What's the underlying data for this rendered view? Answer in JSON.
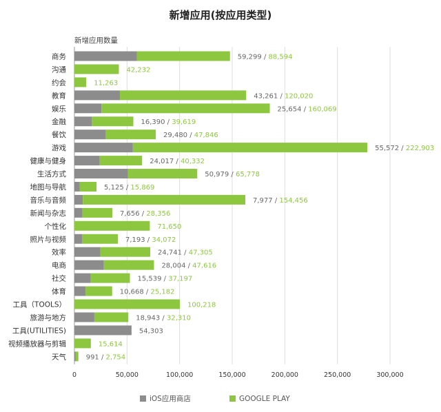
{
  "chart_data": {
    "type": "bar",
    "orientation": "horizontal",
    "stacked": true,
    "title": "新增应用(按应用类型)",
    "subtitle": "新增应用数量",
    "xlabel": "",
    "ylabel": "新增应用数量",
    "xlim": [
      0,
      300000
    ],
    "x_ticks": [
      0,
      50000,
      100000,
      150000,
      200000,
      250000,
      300000
    ],
    "x_tick_labels": [
      "0",
      "50,000",
      "100,000",
      "150,000",
      "200,000",
      "250,000",
      "300,000"
    ],
    "grid": true,
    "legend_position": "bottom",
    "categories": [
      "商务",
      "沟通",
      "约会",
      "教育",
      "娱乐",
      "金融",
      "餐饮",
      "游戏",
      "健康与健身",
      "生活方式",
      "地图与导航",
      "音乐与音频",
      "新闻与杂志",
      "个性化",
      "照片与视频",
      "效率",
      "电商",
      "社交",
      "体育",
      "工具（TOOLS）",
      "旅游与地方",
      "工具(UTILITIES)",
      "视频播放器与剪辑",
      "天气"
    ],
    "series": [
      {
        "name": "iOS应用商店",
        "color": "#8c8c8c",
        "values": [
          59299,
          null,
          null,
          43261,
          25654,
          16390,
          29480,
          55572,
          24017,
          50979,
          5125,
          7977,
          7656,
          null,
          7193,
          24741,
          28004,
          15539,
          10668,
          null,
          18943,
          54303,
          null,
          991
        ],
        "labels": [
          "59,299",
          "",
          "",
          "43,261",
          "25,654",
          "16,390",
          "29,480",
          "55,572",
          "24,017",
          "50,979",
          "5,125",
          "7,977",
          "7,656",
          "",
          "7,193",
          "24,741",
          "28,004",
          "15,539",
          "10,668",
          "",
          "18,943",
          "54,303",
          "",
          "991"
        ]
      },
      {
        "name": "GOOGLE PLAY",
        "color": "#8dc63f",
        "values": [
          88594,
          42232,
          11263,
          120020,
          160069,
          39619,
          47846,
          222903,
          40332,
          65778,
          15869,
          154456,
          28356,
          71650,
          34072,
          47305,
          47616,
          37197,
          25182,
          100218,
          32310,
          null,
          15614,
          2754
        ],
        "labels": [
          "88,594",
          "42,232",
          "11,263",
          "120,020",
          "160,069",
          "39,619",
          "47,846",
          "222,903",
          "40,332",
          "65,778",
          "15,869",
          "154,456",
          "28,356",
          "71,650",
          "34,072",
          "47,305",
          "47,616",
          "37,197",
          "25,182",
          "100,218",
          "32,310",
          "",
          "15,614",
          "2,754"
        ]
      }
    ]
  }
}
